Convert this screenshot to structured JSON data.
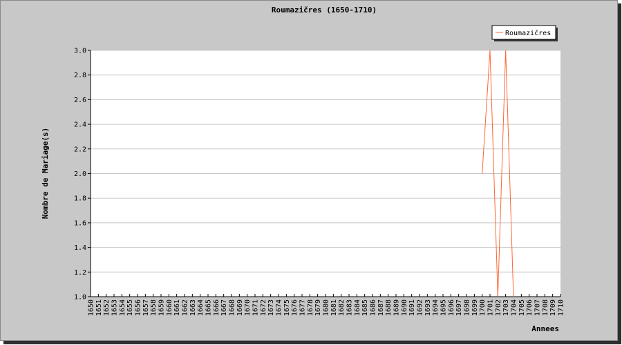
{
  "chart_data": {
    "type": "line",
    "title": "Roumazičres (1650-1710)",
    "xlabel": "Annees",
    "ylabel": "Nombre de Mariage(s)",
    "x": [
      1650,
      1651,
      1652,
      1653,
      1654,
      1655,
      1656,
      1657,
      1658,
      1659,
      1660,
      1661,
      1662,
      1663,
      1664,
      1665,
      1666,
      1667,
      1668,
      1669,
      1670,
      1671,
      1672,
      1673,
      1674,
      1675,
      1676,
      1677,
      1678,
      1679,
      1680,
      1681,
      1682,
      1683,
      1684,
      1685,
      1686,
      1687,
      1688,
      1689,
      1690,
      1691,
      1692,
      1693,
      1694,
      1695,
      1696,
      1697,
      1698,
      1699,
      1700,
      1701,
      1702,
      1703,
      1704,
      1705,
      1706,
      1707,
      1708,
      1709,
      1710
    ],
    "ylim": [
      1.0,
      3.0
    ],
    "yticks": [
      "1.0",
      "1.2",
      "1.4",
      "1.6",
      "1.8",
      "2.0",
      "2.2",
      "2.4",
      "2.6",
      "2.8",
      "3.0"
    ],
    "series": [
      {
        "name": "Roumazičres",
        "color": "#ff6633",
        "points": [
          [
            1700,
            2.0
          ],
          [
            1701,
            3.0
          ],
          [
            1702,
            1.0
          ],
          [
            1703,
            3.0
          ],
          [
            1704,
            1.0
          ]
        ]
      }
    ],
    "grid": "horizontal",
    "legend_position": "top-right"
  }
}
